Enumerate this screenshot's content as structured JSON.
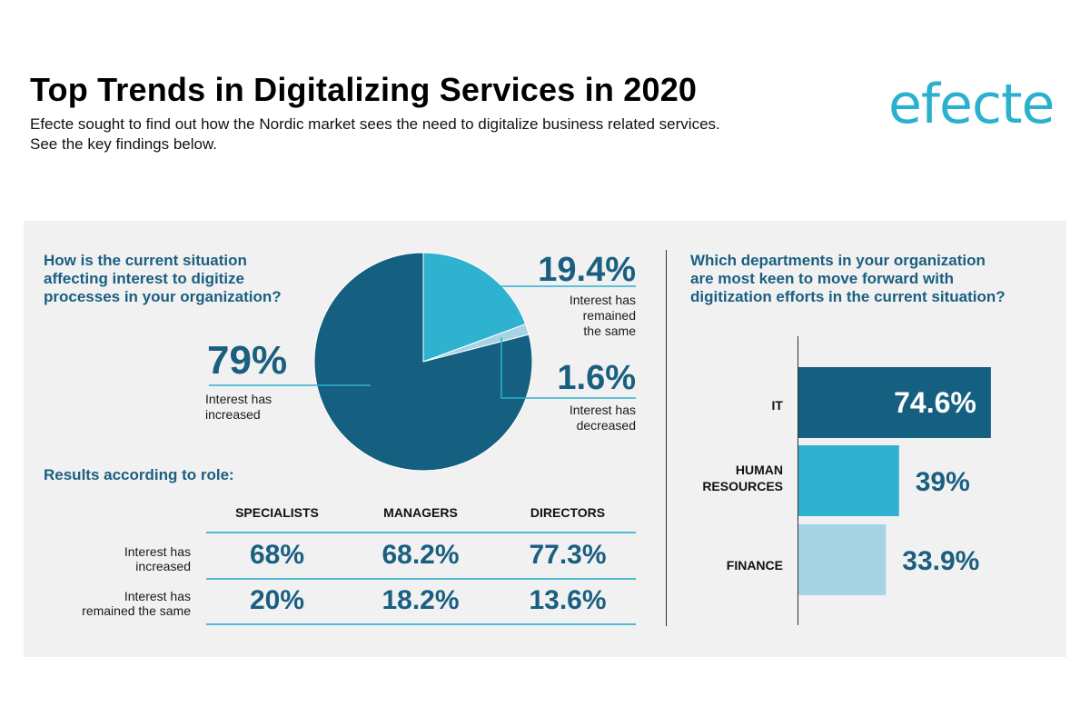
{
  "header": {
    "title": "Top Trends in Digitalizing Services in 2020",
    "subtitle_lines": [
      "Efecte sought to find out how the Nordic market sees the need to digitalize business related services.",
      "See the key findings below."
    ],
    "logo": "efecte"
  },
  "colors": {
    "dark": "#155f80",
    "medium": "#2fb1d0",
    "light": "#a6d4e4",
    "panel": "#f1f1f2"
  },
  "pie_section": {
    "question_lines": [
      "How is the current situation",
      "affecting interest to digitize",
      "processes in your organization?"
    ],
    "increased": {
      "value": "79%",
      "label_lines": [
        "Interest has",
        "increased"
      ]
    },
    "same": {
      "value": "19.4%",
      "label_lines": [
        "Interest has",
        "remained",
        "the same"
      ]
    },
    "decreased": {
      "value": "1.6%",
      "label_lines": [
        "Interest has",
        "decreased"
      ]
    }
  },
  "role_section": {
    "heading": "Results according to role:",
    "columns": [
      "SPECIALISTS",
      "MANAGERS",
      "DIRECTORS"
    ],
    "rows": [
      {
        "label_lines": [
          "Interest has",
          "increased"
        ],
        "values": [
          "68%",
          "68.2%",
          "77.3%"
        ]
      },
      {
        "label_lines": [
          "Interest has",
          "remained the same"
        ],
        "values": [
          "20%",
          "18.2%",
          "13.6%"
        ]
      }
    ]
  },
  "bar_section": {
    "question_lines": [
      "Which departments in your organization",
      "are most keen to move forward with",
      "digitization efforts in the current situation?"
    ]
  },
  "chart_data": [
    {
      "type": "pie",
      "title": "How is the current situation affecting interest to digitize processes in your organization?",
      "categories": [
        "Interest has increased",
        "Interest has remained the same",
        "Interest has decreased"
      ],
      "values": [
        79,
        19.4,
        1.6
      ],
      "value_labels": [
        "79%",
        "19.4%",
        "1.6%"
      ],
      "colors": [
        "#155f80",
        "#2fb1d0",
        "#a6d4e4"
      ]
    },
    {
      "type": "bar",
      "orientation": "horizontal",
      "title": "Which departments in your organization are most keen to move forward with digitization efforts in the current situation?",
      "categories": [
        "IT",
        "HUMAN RESOURCES",
        "FINANCE"
      ],
      "category_lines": [
        [
          "IT"
        ],
        [
          "HUMAN",
          "RESOURCES"
        ],
        [
          "FINANCE"
        ]
      ],
      "values": [
        74.6,
        39,
        33.9
      ],
      "value_labels": [
        "74.6%",
        "39%",
        "33.9%"
      ],
      "colors": [
        "#155f80",
        "#2fb1d0",
        "#a6d4e4"
      ],
      "xlim": [
        0,
        100
      ]
    }
  ]
}
